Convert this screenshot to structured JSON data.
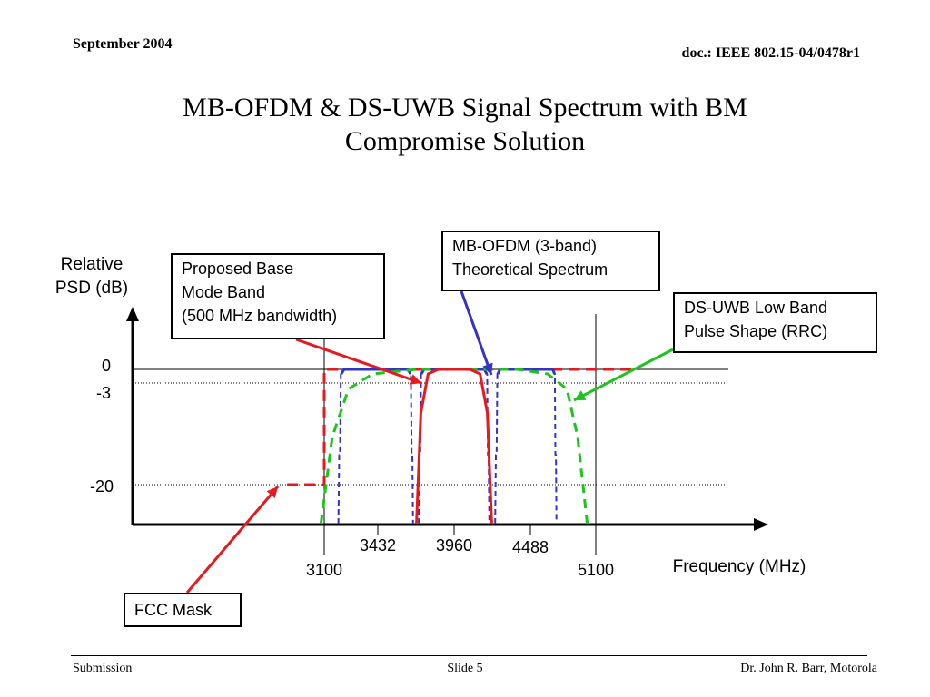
{
  "header": {
    "date": "September 2004",
    "doc_id": "doc.: IEEE 802.15-04/0478r1"
  },
  "slide_title": {
    "line1": "MB-OFDM & DS-UWB Signal Spectrum with BM",
    "line2": "Compromise Solution"
  },
  "footer": {
    "left": "Submission",
    "center": "Slide 5",
    "right": "Dr. John R. Barr, Motorola"
  },
  "colors": {
    "fcc_mask": "#e8181f",
    "mb_ofdm": "#3434c4",
    "ds_uwb": "#1ec41e",
    "base_mode": "#e8181f",
    "axis": "#000000"
  },
  "chart_data": {
    "type": "line",
    "ylabel": [
      "Relative",
      "PSD (dB)"
    ],
    "xlabel": "Frequency (MHz)",
    "y_ticks": [
      "0",
      "-3",
      "-20"
    ],
    "x_ticks": [
      "3100",
      "3432",
      "3960",
      "4488",
      "5100"
    ],
    "reference_lines_db": [
      0,
      -3,
      -20
    ],
    "reference_lines_mhz": [
      3100,
      5100
    ],
    "series": [
      {
        "key": "fcc_mask",
        "style": "dashed",
        "points": [
          [
            2870,
            -20
          ],
          [
            3100,
            -20
          ],
          [
            3100,
            0
          ],
          [
            5500,
            0
          ]
        ]
      },
      {
        "key": "mb_ofdm",
        "style": "dashed",
        "bands": [
          {
            "center": 3432,
            "bandwidth": 528
          },
          {
            "center": 3960,
            "bandwidth": 528
          },
          {
            "center": 4488,
            "bandwidth": 528
          }
        ]
      },
      {
        "key": "ds_uwb",
        "style": "dashed",
        "points": [
          [
            3080,
            -30
          ],
          [
            3150,
            -12
          ],
          [
            3250,
            -4
          ],
          [
            3400,
            -1
          ],
          [
            3700,
            0
          ],
          [
            4400,
            0
          ],
          [
            4650,
            -1
          ],
          [
            4830,
            -4
          ],
          [
            4930,
            -12
          ],
          [
            5020,
            -30
          ]
        ]
      },
      {
        "key": "base_mode",
        "style": "solid",
        "points": [
          [
            3700,
            -30
          ],
          [
            3730,
            -8
          ],
          [
            3780,
            -1
          ],
          [
            3850,
            0
          ],
          [
            4070,
            0
          ],
          [
            4140,
            -1
          ],
          [
            4190,
            -8
          ],
          [
            4220,
            -30
          ]
        ]
      }
    ]
  },
  "callouts": {
    "mb_ofdm": [
      "MB-OFDM (3-band)",
      "Theoretical Spectrum"
    ],
    "base_mode": [
      "Proposed Base",
      "Mode Band",
      "(500 MHz bandwidth)"
    ],
    "ds_uwb": [
      "DS-UWB Low Band",
      "Pulse Shape (RRC)"
    ],
    "fcc": [
      "FCC Mask"
    ]
  }
}
